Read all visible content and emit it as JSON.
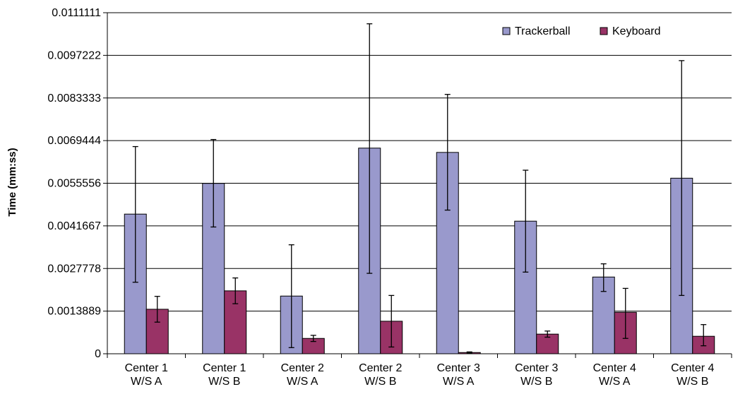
{
  "chart_data": {
    "type": "bar",
    "title": "",
    "xlabel": "",
    "ylabel": "Time (mm:ss)",
    "ylim": [
      0,
      0.0111111
    ],
    "yticks": [
      "0",
      "0.0013889",
      "0.0027778",
      "0.0041667",
      "0.0055556",
      "0.0069444",
      "0.0083333",
      "0.0097222",
      "0.0111111"
    ],
    "grid": true,
    "legend_position": "top-right",
    "categories": [
      [
        "Center 1",
        "W/S A"
      ],
      [
        "Center 1",
        "W/S B"
      ],
      [
        "Center 2",
        "W/S A"
      ],
      [
        "Center 2",
        "W/S B"
      ],
      [
        "Center 3",
        "W/S A"
      ],
      [
        "Center 3",
        "W/S B"
      ],
      [
        "Center 4",
        "W/S A"
      ],
      [
        "Center 4",
        "W/S B"
      ]
    ],
    "series": [
      {
        "name": "Trackerball",
        "color": "#9999cc",
        "values": [
          0.00455,
          0.00555,
          0.00188,
          0.0067,
          0.00656,
          0.00432,
          0.0025,
          0.00572
        ],
        "err_low": [
          0.00233,
          0.00413,
          0.0002,
          0.00262,
          0.00468,
          0.00266,
          0.00203,
          0.0019
        ],
        "err_high": [
          0.00675,
          0.00698,
          0.00355,
          0.01075,
          0.00845,
          0.00598,
          0.00293,
          0.00955
        ]
      },
      {
        "name": "Keyboard",
        "color": "#993366",
        "values": [
          0.00145,
          0.00205,
          0.0005,
          0.00106,
          4e-05,
          0.00064,
          0.00135,
          0.00057
        ],
        "err_low": [
          0.00103,
          0.00163,
          0.0004,
          0.00022,
          2e-05,
          0.00054,
          0.0005,
          0.00026
        ],
        "err_high": [
          0.00187,
          0.00247,
          0.0006,
          0.0019,
          6e-05,
          0.00074,
          0.00213,
          0.00095
        ]
      }
    ]
  }
}
